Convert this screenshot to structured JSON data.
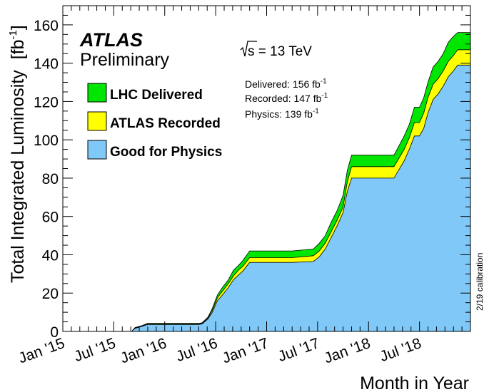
{
  "chart_data": {
    "type": "area",
    "experiment": "ATLAS",
    "status": "Preliminary",
    "energy_label": "s = 13 TeV",
    "xlabel": "Month in Year",
    "ylabel": "Total Integrated Luminosity",
    "ylabel_unit": "[fb",
    "ylabel_unit_exp": "-1",
    "ylabel_unit_close": "]",
    "calibration_note": "2/19 calibration",
    "x_tick_labels": [
      "Jan '15",
      "Jul '15",
      "Jan '16",
      "Jul '16",
      "Jan '17",
      "Jul '17",
      "Jan '18",
      "Jul '18"
    ],
    "x_tick_months": [
      0,
      6,
      12,
      18,
      24,
      30,
      36,
      42
    ],
    "x_range_months": [
      0,
      48
    ],
    "ylim": [
      0,
      170
    ],
    "y_ticks": [
      0,
      20,
      40,
      60,
      80,
      100,
      120,
      140,
      160
    ],
    "legend_position": "top-left",
    "summary": [
      {
        "label": "Delivered: 156 fb",
        "sup": "-1"
      },
      {
        "label": "Recorded: 147 fb",
        "sup": "-1"
      },
      {
        "label": "Physics: 139 fb",
        "sup": "-1"
      }
    ],
    "x_months": [
      0,
      6,
      8.1,
      8.5,
      9.3,
      10,
      10.8,
      11.5,
      12,
      16,
      16.4,
      17.1,
      17.6,
      18.2,
      18.8,
      19.5,
      20.1,
      20.7,
      21.2,
      22,
      24,
      27,
      29.5,
      30.2,
      30.9,
      31.6,
      32.3,
      33,
      33.5,
      34,
      36,
      39,
      40.2,
      40.8,
      41.4,
      42,
      42.5,
      43,
      43.6,
      44.2,
      44.8,
      45.4,
      46,
      46.5,
      48
    ],
    "series": [
      {
        "name": "LHC Delivered",
        "color": "#00e600",
        "values": [
          0,
          0,
          0,
          2.0,
          3.0,
          4.2,
          4.2,
          4.2,
          4.2,
          4.2,
          4.5,
          7.5,
          12,
          19,
          23,
          27,
          32,
          34.5,
          37,
          42,
          42,
          42,
          43,
          46,
          50,
          57,
          63,
          71,
          84,
          92,
          92,
          92,
          102,
          108,
          117,
          117,
          122,
          130,
          138,
          141,
          145,
          151,
          154,
          156,
          156
        ]
      },
      {
        "name": "ATLAS Recorded",
        "color": "#ffff00",
        "values": [
          0,
          0,
          0,
          1.8,
          2.8,
          3.9,
          3.9,
          3.9,
          3.9,
          3.9,
          4.2,
          7.0,
          11,
          17.5,
          21,
          25,
          29,
          32,
          34,
          38.5,
          38.5,
          38.5,
          39.5,
          42,
          46,
          52,
          58,
          65,
          78,
          86,
          86,
          86,
          95,
          101,
          109,
          109,
          114,
          122,
          129,
          132,
          136,
          141,
          144,
          147,
          147
        ]
      },
      {
        "name": "Good for Physics",
        "color": "#80c8f8",
        "values": [
          0,
          0,
          0,
          1.6,
          2.6,
          3.6,
          3.6,
          3.6,
          3.6,
          3.6,
          3.9,
          6.5,
          10,
          16,
          19,
          23,
          27,
          29.5,
          31.5,
          36,
          36,
          36,
          36.5,
          39,
          43,
          49,
          55,
          62,
          73,
          80,
          80,
          80,
          89,
          95,
          102,
          102,
          106,
          114,
          121,
          124,
          128,
          133,
          136,
          139,
          139
        ]
      }
    ]
  }
}
